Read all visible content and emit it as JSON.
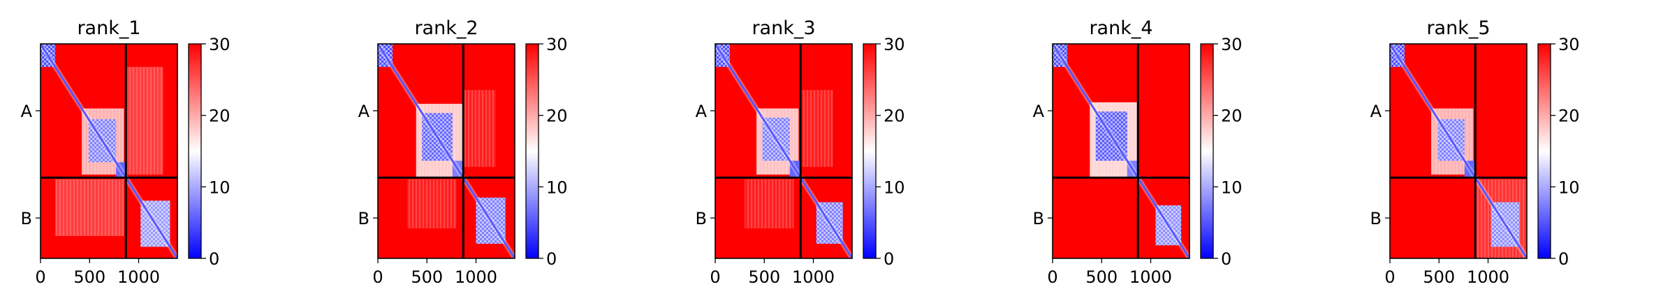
{
  "chart_data": [
    {
      "type": "heatmap",
      "title": "rank_1",
      "x_ticks": [
        0,
        500,
        1000
      ],
      "x_range": [
        0,
        1395
      ],
      "y_range": [
        0,
        1395
      ],
      "chain_labels": [
        "A",
        "B"
      ],
      "chain_boundary": 870,
      "colorbar": {
        "ticks": [
          0,
          10,
          20,
          30
        ],
        "range": [
          0,
          30
        ],
        "colors": [
          "#0000ff",
          "#ffffff",
          "#ff0000"
        ]
      },
      "blue_regions": [
        {
          "x": [
            0,
            150
          ],
          "y": [
            0,
            150
          ],
          "level": 0.85,
          "texture": "checker"
        },
        {
          "x": [
            490,
            770
          ],
          "y": [
            490,
            770
          ],
          "level": 0.75,
          "texture": "checker"
        },
        {
          "x": [
            770,
            870
          ],
          "y": [
            770,
            870
          ],
          "level": 0.8,
          "texture": "none"
        },
        {
          "x": [
            1020,
            1320
          ],
          "y": [
            1020,
            1320
          ],
          "level": 0.7,
          "texture": "checker"
        }
      ],
      "pale_regions": [
        {
          "x": [
            420,
            850
          ],
          "y": [
            420,
            850
          ],
          "level": 0.35
        },
        {
          "x": [
            150,
            850
          ],
          "y": [
            880,
            1250
          ],
          "level": 0.12
        },
        {
          "x": [
            880,
            1250
          ],
          "y": [
            150,
            850
          ],
          "level": 0.12
        }
      ]
    },
    {
      "type": "heatmap",
      "title": "rank_2",
      "x_ticks": [
        0,
        500,
        1000
      ],
      "x_range": [
        0,
        1395
      ],
      "y_range": [
        0,
        1395
      ],
      "chain_labels": [
        "A",
        "B"
      ],
      "chain_boundary": 870,
      "colorbar": {
        "ticks": [
          0,
          10,
          20,
          30
        ],
        "range": [
          0,
          30
        ],
        "colors": [
          "#0000ff",
          "#ffffff",
          "#ff0000"
        ]
      },
      "blue_regions": [
        {
          "x": [
            0,
            150
          ],
          "y": [
            0,
            150
          ],
          "level": 0.85,
          "texture": "checker"
        },
        {
          "x": [
            450,
            760
          ],
          "y": [
            450,
            760
          ],
          "level": 0.8,
          "texture": "checker"
        },
        {
          "x": [
            760,
            870
          ],
          "y": [
            760,
            870
          ],
          "level": 0.75,
          "texture": "none"
        },
        {
          "x": [
            1000,
            1300
          ],
          "y": [
            1000,
            1300
          ],
          "level": 0.75,
          "texture": "checker"
        }
      ],
      "pale_regions": [
        {
          "x": [
            390,
            870
          ],
          "y": [
            390,
            870
          ],
          "level": 0.4
        },
        {
          "x": [
            300,
            800
          ],
          "y": [
            880,
            1200
          ],
          "level": 0.06
        },
        {
          "x": [
            880,
            1200
          ],
          "y": [
            300,
            800
          ],
          "level": 0.06
        }
      ]
    },
    {
      "type": "heatmap",
      "title": "rank_3",
      "x_ticks": [
        0,
        500,
        1000
      ],
      "x_range": [
        0,
        1395
      ],
      "y_range": [
        0,
        1395
      ],
      "chain_labels": [
        "A",
        "B"
      ],
      "chain_boundary": 870,
      "colorbar": {
        "ticks": [
          0,
          10,
          20,
          30
        ],
        "range": [
          0,
          30
        ],
        "colors": [
          "#0000ff",
          "#ffffff",
          "#ff0000"
        ]
      },
      "blue_regions": [
        {
          "x": [
            0,
            150
          ],
          "y": [
            0,
            150
          ],
          "level": 0.85,
          "texture": "checker"
        },
        {
          "x": [
            480,
            760
          ],
          "y": [
            480,
            760
          ],
          "level": 0.75,
          "texture": "checker"
        },
        {
          "x": [
            760,
            870
          ],
          "y": [
            760,
            870
          ],
          "level": 0.8,
          "texture": "none"
        },
        {
          "x": [
            1030,
            1300
          ],
          "y": [
            1030,
            1300
          ],
          "level": 0.75,
          "texture": "checker"
        }
      ],
      "pale_regions": [
        {
          "x": [
            420,
            850
          ],
          "y": [
            420,
            850
          ],
          "level": 0.38
        },
        {
          "x": [
            300,
            800
          ],
          "y": [
            880,
            1200
          ],
          "level": 0.06
        },
        {
          "x": [
            880,
            1200
          ],
          "y": [
            300,
            800
          ],
          "level": 0.06
        }
      ]
    },
    {
      "type": "heatmap",
      "title": "rank_4",
      "x_ticks": [
        0,
        500,
        1000
      ],
      "x_range": [
        0,
        1395
      ],
      "y_range": [
        0,
        1395
      ],
      "chain_labels": [
        "A",
        "B"
      ],
      "chain_boundary": 870,
      "colorbar": {
        "ticks": [
          0,
          10,
          20,
          30
        ],
        "range": [
          0,
          30
        ],
        "colors": [
          "#0000ff",
          "#ffffff",
          "#ff0000"
        ]
      },
      "blue_regions": [
        {
          "x": [
            0,
            150
          ],
          "y": [
            0,
            150
          ],
          "level": 0.85,
          "texture": "checker"
        },
        {
          "x": [
            440,
            760
          ],
          "y": [
            440,
            760
          ],
          "level": 0.82,
          "texture": "checker"
        },
        {
          "x": [
            760,
            870
          ],
          "y": [
            760,
            870
          ],
          "level": 0.75,
          "texture": "none"
        },
        {
          "x": [
            1050,
            1310
          ],
          "y": [
            1050,
            1310
          ],
          "level": 0.72,
          "texture": "checker"
        }
      ],
      "pale_regions": [
        {
          "x": [
            380,
            870
          ],
          "y": [
            380,
            870
          ],
          "level": 0.42
        }
      ]
    },
    {
      "type": "heatmap",
      "title": "rank_5",
      "x_ticks": [
        0,
        500,
        1000
      ],
      "x_range": [
        0,
        1395
      ],
      "y_range": [
        0,
        1395
      ],
      "chain_labels": [
        "A",
        "B"
      ],
      "chain_boundary": 870,
      "colorbar": {
        "ticks": [
          0,
          10,
          20,
          30
        ],
        "range": [
          0,
          30
        ],
        "colors": [
          "#0000ff",
          "#ffffff",
          "#ff0000"
        ]
      },
      "blue_regions": [
        {
          "x": [
            0,
            150
          ],
          "y": [
            0,
            150
          ],
          "level": 0.85,
          "texture": "checker"
        },
        {
          "x": [
            490,
            760
          ],
          "y": [
            490,
            760
          ],
          "level": 0.75,
          "texture": "checker"
        },
        {
          "x": [
            760,
            870
          ],
          "y": [
            760,
            870
          ],
          "level": 0.8,
          "texture": "none"
        },
        {
          "x": [
            1030,
            1320
          ],
          "y": [
            1030,
            1320
          ],
          "level": 0.72,
          "texture": "checker"
        }
      ],
      "pale_regions": [
        {
          "x": [
            420,
            850
          ],
          "y": [
            420,
            850
          ],
          "level": 0.35
        },
        {
          "x": [
            880,
            1395
          ],
          "y": [
            880,
            1395
          ],
          "level": 0.1
        }
      ]
    }
  ]
}
